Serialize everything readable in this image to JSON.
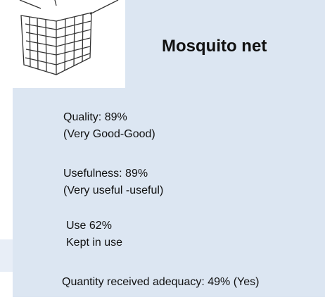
{
  "title": "Mosquito net",
  "items": [
    {
      "main": "Quality:  89%",
      "sub": "(Very Good-Good)"
    },
    {
      "main": "Usefulness:  89%",
      "sub": "(Very useful -useful)"
    },
    {
      "main": "Use 62%",
      "sub": "Kept in use"
    },
    {
      "main": "Quantity received adequacy: 49% (Yes)"
    }
  ]
}
